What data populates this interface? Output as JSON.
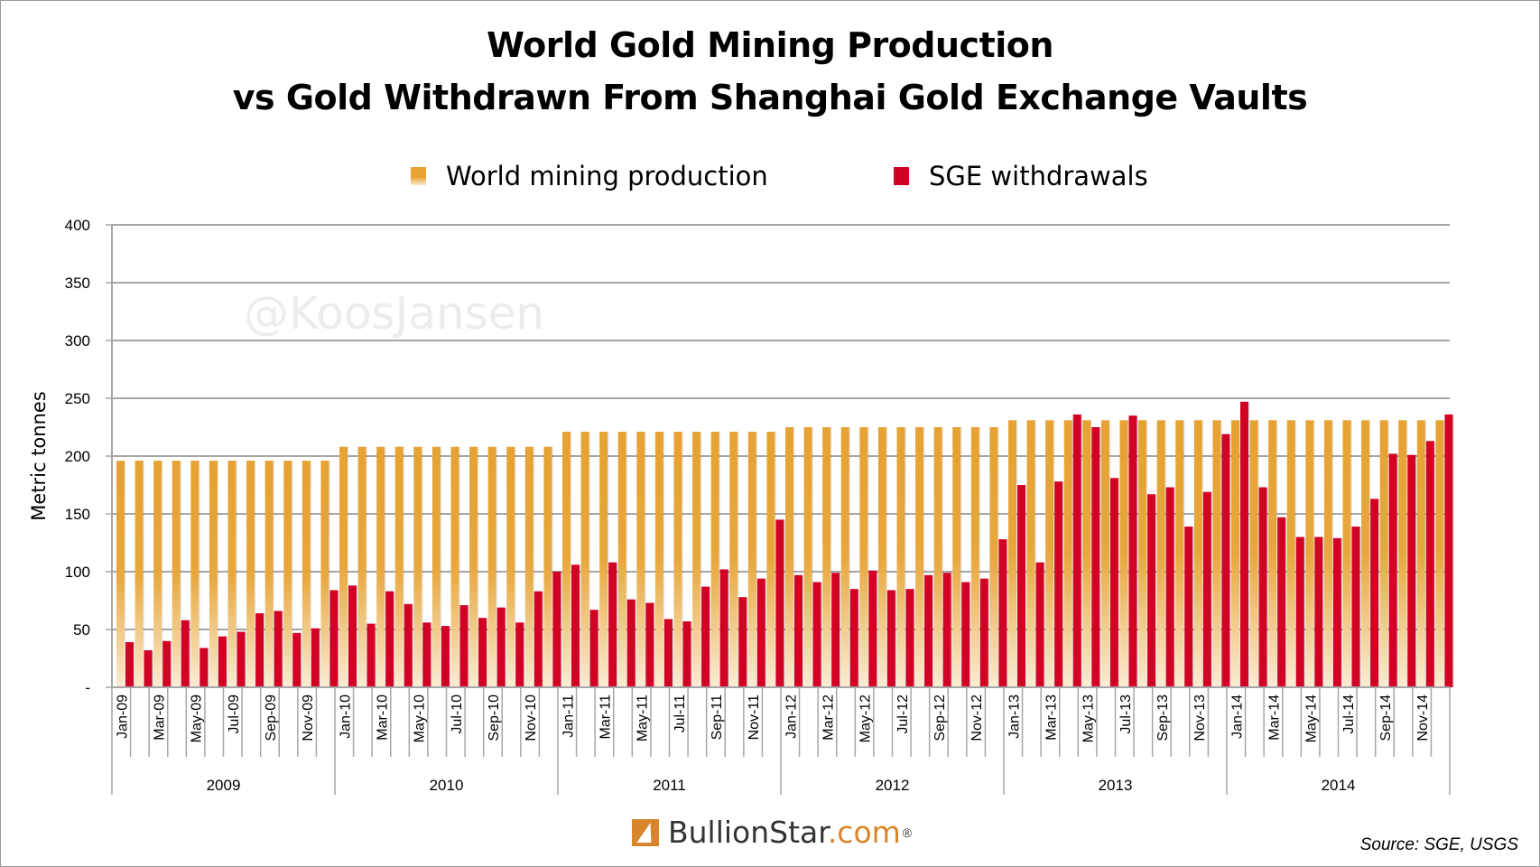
{
  "chart_data": {
    "type": "bar",
    "title": [
      "World Gold Mining Production",
      "vs Gold Withdrawn From Shanghai Gold Exchange Vaults"
    ],
    "xlabel": "",
    "ylabel": "Metric tonnes",
    "ylim": [
      0,
      400
    ],
    "yticks": [
      "-",
      "50",
      "100",
      "150",
      "200",
      "250",
      "300",
      "350",
      "400"
    ],
    "grid": true,
    "legend_position": "top-center",
    "years": [
      "2009",
      "2010",
      "2011",
      "2012",
      "2013",
      "2014"
    ],
    "month_labels": [
      "Jan",
      "",
      "Mar",
      "",
      "May",
      "",
      "Jul",
      "",
      "Sep",
      "",
      "Nov",
      ""
    ],
    "tick_labels": [
      "Jan-09",
      "",
      "Mar-09",
      "",
      "May-09",
      "",
      "Jul-09",
      "",
      "Sep-09",
      "",
      "Nov-09",
      "",
      "Jan-10",
      "",
      "Mar-10",
      "",
      "May-10",
      "",
      "Jul-10",
      "",
      "Sep-10",
      "",
      "Nov-10",
      "",
      "Jan-11",
      "",
      "Mar-11",
      "",
      "May-11",
      "",
      "Jul-11",
      "",
      "Sep-11",
      "",
      "Nov-11",
      "",
      "Jan-12",
      "",
      "Mar-12",
      "",
      "May-12",
      "",
      "Jul-12",
      "",
      "Sep-12",
      "",
      "Nov-12",
      "",
      "Jan-13",
      "",
      "Mar-13",
      "",
      "May-13",
      "",
      "Jul-13",
      "",
      "Sep-13",
      "",
      "Nov-13",
      "",
      "Jan-14",
      "",
      "Mar-14",
      "",
      "May-14",
      "",
      "Jul-14",
      "",
      "Sep-14",
      "",
      "Nov-14",
      ""
    ],
    "series": [
      {
        "name": "World mining production",
        "color": "#e6a232",
        "values": [
          196,
          196,
          196,
          196,
          196,
          196,
          196,
          196,
          196,
          196,
          196,
          196,
          208,
          208,
          208,
          208,
          208,
          208,
          208,
          208,
          208,
          208,
          208,
          208,
          221,
          221,
          221,
          221,
          221,
          221,
          221,
          221,
          221,
          221,
          221,
          221,
          225,
          225,
          225,
          225,
          225,
          225,
          225,
          225,
          225,
          225,
          225,
          225,
          231,
          231,
          231,
          231,
          231,
          231,
          231,
          231,
          231,
          231,
          231,
          231,
          231,
          231,
          231,
          231,
          231,
          231,
          231,
          231,
          231,
          231,
          231,
          231
        ]
      },
      {
        "name": "SGE withdrawals",
        "color": "#d20023",
        "values": [
          39,
          32,
          40,
          58,
          34,
          44,
          48,
          64,
          66,
          47,
          51,
          84,
          88,
          55,
          83,
          72,
          56,
          53,
          71,
          60,
          69,
          56,
          83,
          100,
          106,
          67,
          108,
          76,
          73,
          59,
          57,
          87,
          102,
          78,
          94,
          145,
          97,
          91,
          99,
          85,
          101,
          84,
          85,
          97,
          99,
          91,
          94,
          128,
          175,
          108,
          178,
          236,
          225,
          181,
          235,
          167,
          173,
          139,
          169,
          219,
          247,
          173,
          147,
          130,
          130,
          129,
          139,
          163,
          202,
          201,
          213,
          236
        ]
      }
    ]
  },
  "watermark": "@KoosJansen",
  "source": "Source: SGE, USGS",
  "logo": {
    "prefix": "BullionStar",
    "suffix": ".com",
    "reg": "®"
  }
}
